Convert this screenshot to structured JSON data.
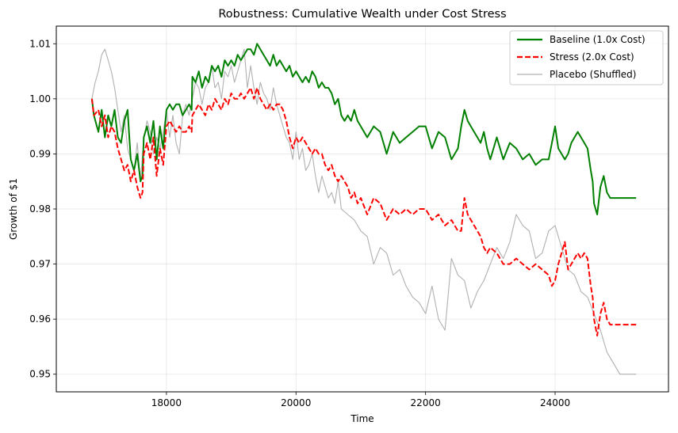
{
  "chart_data": {
    "type": "line",
    "title": "Robustness: Cumulative Wealth under Cost Stress",
    "xlabel": "Time",
    "ylabel": "Growth of $1",
    "xlim": [
      16300,
      25750
    ],
    "ylim": [
      0.9468,
      1.0132
    ],
    "xticks": [
      18000,
      20000,
      22000,
      24000
    ],
    "xtick_labels": [
      "18000",
      "20000",
      "22000",
      "24000"
    ],
    "yticks": [
      0.95,
      0.96,
      0.97,
      0.98,
      0.99,
      1.0,
      1.01
    ],
    "ytick_labels": [
      "0.95",
      "0.96",
      "0.97",
      "0.98",
      "0.99",
      "1.00",
      "1.01"
    ],
    "grid": true,
    "legend_position": "top-right",
    "series": [
      {
        "name": "Baseline (1.0x Cost)",
        "color": "#008000",
        "style": "solid",
        "x": [
          16850,
          16880,
          16950,
          17000,
          17050,
          17100,
          17150,
          17200,
          17250,
          17300,
          17350,
          17400,
          17450,
          17500,
          17550,
          17600,
          17630,
          17650,
          17700,
          17750,
          17800,
          17850,
          17900,
          17950,
          18000,
          18050,
          18100,
          18150,
          18200,
          18250,
          18300,
          18350,
          18390,
          18400,
          18450,
          18500,
          18550,
          18600,
          18650,
          18700,
          18750,
          18800,
          18850,
          18900,
          18950,
          19000,
          19050,
          19100,
          19150,
          19200,
          19250,
          19300,
          19350,
          19400,
          19450,
          19500,
          19550,
          19600,
          19650,
          19700,
          19750,
          19800,
          19850,
          19900,
          19950,
          20000,
          20050,
          20100,
          20150,
          20200,
          20250,
          20300,
          20350,
          20400,
          20450,
          20500,
          20550,
          20600,
          20650,
          20700,
          20750,
          20800,
          20850,
          20900,
          20950,
          21000,
          21100,
          21200,
          21300,
          21400,
          21500,
          21600,
          21700,
          21800,
          21900,
          22000,
          22100,
          22200,
          22300,
          22400,
          22500,
          22550,
          22600,
          22650,
          22700,
          22750,
          22800,
          22850,
          22900,
          22950,
          23000,
          23100,
          23200,
          23300,
          23400,
          23500,
          23600,
          23700,
          23800,
          23900,
          23950,
          24000,
          24050,
          24100,
          24150,
          24200,
          24250,
          24300,
          24350,
          24400,
          24450,
          24500,
          24550,
          24580,
          24600,
          24650,
          24700,
          24750,
          24800,
          24850,
          24900,
          25000,
          25100,
          25250
        ],
        "y": [
          1.0,
          0.997,
          0.994,
          0.998,
          0.993,
          0.997,
          0.995,
          0.998,
          0.993,
          0.992,
          0.996,
          0.998,
          0.989,
          0.987,
          0.99,
          0.985,
          0.986,
          0.993,
          0.995,
          0.992,
          0.996,
          0.989,
          0.995,
          0.991,
          0.998,
          0.999,
          0.998,
          0.999,
          0.999,
          0.997,
          0.998,
          0.999,
          0.998,
          1.004,
          1.003,
          1.005,
          1.002,
          1.004,
          1.003,
          1.006,
          1.005,
          1.006,
          1.004,
          1.007,
          1.006,
          1.007,
          1.006,
          1.008,
          1.007,
          1.008,
          1.009,
          1.009,
          1.008,
          1.01,
          1.009,
          1.008,
          1.007,
          1.006,
          1.008,
          1.006,
          1.007,
          1.006,
          1.005,
          1.006,
          1.004,
          1.005,
          1.004,
          1.003,
          1.004,
          1.003,
          1.005,
          1.004,
          1.002,
          1.003,
          1.002,
          1.002,
          1.001,
          0.999,
          1.0,
          0.997,
          0.996,
          0.997,
          0.996,
          0.998,
          0.996,
          0.995,
          0.993,
          0.995,
          0.994,
          0.99,
          0.994,
          0.992,
          0.993,
          0.994,
          0.995,
          0.995,
          0.991,
          0.994,
          0.993,
          0.989,
          0.991,
          0.995,
          0.998,
          0.996,
          0.995,
          0.994,
          0.993,
          0.992,
          0.994,
          0.991,
          0.989,
          0.993,
          0.989,
          0.992,
          0.991,
          0.989,
          0.99,
          0.988,
          0.989,
          0.989,
          0.992,
          0.995,
          0.991,
          0.99,
          0.989,
          0.99,
          0.992,
          0.993,
          0.994,
          0.993,
          0.992,
          0.991,
          0.987,
          0.985,
          0.981,
          0.979,
          0.984,
          0.986,
          0.983,
          0.982,
          0.982,
          0.982,
          0.982,
          0.982
        ]
      },
      {
        "name": "Stress (2.0x Cost)",
        "color": "#ff0000",
        "style": "dashed",
        "x": [
          16850,
          16880,
          16950,
          17000,
          17050,
          17100,
          17150,
          17200,
          17250,
          17300,
          17350,
          17400,
          17450,
          17500,
          17550,
          17600,
          17630,
          17650,
          17700,
          17750,
          17800,
          17850,
          17900,
          17950,
          18000,
          18050,
          18100,
          18150,
          18200,
          18250,
          18300,
          18350,
          18390,
          18400,
          18450,
          18500,
          18550,
          18600,
          18650,
          18700,
          18750,
          18800,
          18850,
          18900,
          18950,
          19000,
          19050,
          19100,
          19150,
          19200,
          19250,
          19300,
          19350,
          19400,
          19450,
          19500,
          19550,
          19600,
          19650,
          19700,
          19750,
          19800,
          19850,
          19900,
          19950,
          20000,
          20050,
          20100,
          20150,
          20200,
          20250,
          20300,
          20350,
          20400,
          20450,
          20500,
          20550,
          20600,
          20650,
          20700,
          20750,
          20800,
          20850,
          20900,
          20950,
          21000,
          21100,
          21200,
          21300,
          21400,
          21500,
          21600,
          21700,
          21800,
          21900,
          22000,
          22100,
          22200,
          22300,
          22400,
          22500,
          22550,
          22600,
          22650,
          22700,
          22750,
          22800,
          22850,
          22900,
          22950,
          23000,
          23100,
          23200,
          23300,
          23400,
          23500,
          23600,
          23700,
          23800,
          23900,
          23950,
          24000,
          24050,
          24100,
          24150,
          24200,
          24250,
          24300,
          24350,
          24400,
          24450,
          24500,
          24550,
          24580,
          24600,
          24650,
          24700,
          24750,
          24800,
          24850,
          24900,
          25000,
          25100,
          25250
        ],
        "y": [
          1.0,
          0.997,
          0.998,
          0.995,
          0.997,
          0.993,
          0.995,
          0.994,
          0.991,
          0.989,
          0.987,
          0.988,
          0.985,
          0.987,
          0.984,
          0.982,
          0.983,
          0.99,
          0.992,
          0.989,
          0.993,
          0.986,
          0.991,
          0.988,
          0.995,
          0.996,
          0.995,
          0.994,
          0.995,
          0.994,
          0.994,
          0.995,
          0.994,
          0.997,
          0.998,
          0.999,
          0.998,
          0.997,
          0.999,
          0.998,
          1.0,
          0.999,
          0.998,
          1.0,
          0.999,
          1.001,
          1.0,
          1.0,
          1.001,
          1.0,
          1.001,
          1.002,
          1.0,
          1.002,
          1.0,
          0.999,
          0.998,
          0.999,
          0.998,
          0.999,
          0.999,
          0.998,
          0.996,
          0.993,
          0.991,
          0.993,
          0.992,
          0.993,
          0.992,
          0.991,
          0.99,
          0.991,
          0.99,
          0.99,
          0.988,
          0.987,
          0.988,
          0.986,
          0.985,
          0.986,
          0.985,
          0.984,
          0.982,
          0.983,
          0.981,
          0.982,
          0.979,
          0.982,
          0.981,
          0.978,
          0.98,
          0.979,
          0.98,
          0.979,
          0.98,
          0.98,
          0.978,
          0.979,
          0.977,
          0.978,
          0.976,
          0.976,
          0.982,
          0.979,
          0.978,
          0.977,
          0.976,
          0.975,
          0.973,
          0.972,
          0.973,
          0.972,
          0.97,
          0.97,
          0.971,
          0.97,
          0.969,
          0.97,
          0.969,
          0.968,
          0.966,
          0.967,
          0.97,
          0.972,
          0.974,
          0.969,
          0.97,
          0.971,
          0.972,
          0.971,
          0.972,
          0.971,
          0.966,
          0.964,
          0.96,
          0.957,
          0.961,
          0.963,
          0.96,
          0.959,
          0.959,
          0.959,
          0.959,
          0.959
        ]
      },
      {
        "name": "Placebo (Shuffled)",
        "color": "#b0b0b0",
        "style": "solid",
        "x": [
          16850,
          16900,
          16950,
          17000,
          17050,
          17100,
          17150,
          17200,
          17250,
          17300,
          17350,
          17400,
          17450,
          17500,
          17550,
          17600,
          17650,
          17700,
          17750,
          17800,
          17850,
          17900,
          17950,
          18000,
          18050,
          18100,
          18150,
          18200,
          18250,
          18300,
          18350,
          18400,
          18450,
          18500,
          18550,
          18600,
          18650,
          18700,
          18750,
          18800,
          18850,
          18900,
          18950,
          19000,
          19050,
          19100,
          19150,
          19200,
          19250,
          19300,
          19350,
          19400,
          19450,
          19500,
          19550,
          19600,
          19650,
          19700,
          19750,
          19800,
          19850,
          19900,
          19950,
          20000,
          20050,
          20100,
          20150,
          20200,
          20250,
          20300,
          20350,
          20400,
          20450,
          20500,
          20550,
          20600,
          20650,
          20700,
          20800,
          20900,
          21000,
          21100,
          21200,
          21300,
          21400,
          21500,
          21600,
          21700,
          21800,
          21900,
          22000,
          22100,
          22200,
          22300,
          22400,
          22500,
          22600,
          22700,
          22800,
          22900,
          23000,
          23100,
          23200,
          23300,
          23400,
          23500,
          23600,
          23700,
          23800,
          23900,
          24000,
          24100,
          24200,
          24300,
          24400,
          24500,
          24600,
          24700,
          24750,
          24800,
          24900,
          25000,
          25250
        ],
        "y": [
          1.0,
          1.003,
          1.005,
          1.008,
          1.009,
          1.007,
          1.005,
          1.002,
          0.998,
          0.994,
          0.997,
          0.991,
          0.989,
          0.987,
          0.992,
          0.985,
          0.993,
          0.996,
          0.994,
          0.99,
          0.993,
          0.991,
          0.994,
          0.998,
          0.993,
          0.997,
          0.992,
          0.99,
          0.997,
          0.999,
          0.997,
          1.0,
          1.003,
          1.002,
          0.999,
          1.002,
          1.003,
          1.006,
          1.002,
          1.003,
          1.0,
          1.005,
          1.004,
          1.006,
          1.003,
          1.005,
          1.007,
          1.009,
          1.002,
          1.006,
          1.002,
          0.999,
          1.003,
          1.001,
          1.0,
          0.998,
          1.002,
          0.999,
          0.997,
          0.995,
          0.993,
          0.992,
          0.989,
          0.994,
          0.989,
          0.991,
          0.987,
          0.988,
          0.99,
          0.986,
          0.983,
          0.986,
          0.984,
          0.982,
          0.983,
          0.981,
          0.985,
          0.98,
          0.979,
          0.978,
          0.976,
          0.975,
          0.97,
          0.973,
          0.972,
          0.968,
          0.969,
          0.966,
          0.964,
          0.963,
          0.961,
          0.966,
          0.96,
          0.958,
          0.971,
          0.968,
          0.967,
          0.962,
          0.965,
          0.967,
          0.97,
          0.973,
          0.971,
          0.974,
          0.979,
          0.977,
          0.976,
          0.971,
          0.972,
          0.976,
          0.977,
          0.973,
          0.969,
          0.968,
          0.965,
          0.964,
          0.961,
          0.958,
          0.956,
          0.954,
          0.952,
          0.95,
          0.95
        ]
      }
    ]
  }
}
